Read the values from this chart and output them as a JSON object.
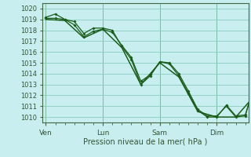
{
  "title": "Pression niveau de la mer( hPa )",
  "bg_color": "#c8eef0",
  "grid_color": "#88ccbb",
  "line_color": "#1a5c1a",
  "ylim": [
    1009.5,
    1020.5
  ],
  "yticks": [
    1010,
    1011,
    1012,
    1013,
    1014,
    1015,
    1016,
    1017,
    1018,
    1019,
    1020
  ],
  "xtick_labels": [
    "Ven",
    "Lun",
    "Sam",
    "Dim"
  ],
  "xtick_positions": [
    0,
    72,
    144,
    216
  ],
  "vline_positions": [
    0,
    72,
    144,
    216
  ],
  "xlim": [
    -4,
    256
  ],
  "series1": [
    [
      0,
      1019.2
    ],
    [
      12,
      1019.5
    ],
    [
      24,
      1019.0
    ],
    [
      36,
      1018.8
    ],
    [
      48,
      1017.7
    ],
    [
      60,
      1018.2
    ],
    [
      72,
      1018.2
    ],
    [
      84,
      1018.0
    ],
    [
      96,
      1016.5
    ],
    [
      108,
      1015.3
    ],
    [
      120,
      1013.0
    ],
    [
      132,
      1013.8
    ],
    [
      144,
      1015.1
    ],
    [
      156,
      1015.0
    ],
    [
      168,
      1014.0
    ],
    [
      180,
      1012.4
    ],
    [
      192,
      1010.7
    ],
    [
      204,
      1010.1
    ],
    [
      216,
      1010.1
    ],
    [
      228,
      1011.0
    ],
    [
      240,
      1010.0
    ],
    [
      252,
      1010.1
    ],
    [
      258,
      1011.7
    ]
  ],
  "series2": [
    [
      0,
      1019.1
    ],
    [
      12,
      1019.1
    ],
    [
      24,
      1019.0
    ],
    [
      36,
      1018.5
    ],
    [
      48,
      1017.4
    ],
    [
      60,
      1017.9
    ],
    [
      72,
      1018.1
    ],
    [
      84,
      1017.8
    ],
    [
      96,
      1016.6
    ],
    [
      108,
      1015.5
    ],
    [
      120,
      1013.3
    ],
    [
      132,
      1013.9
    ],
    [
      144,
      1015.1
    ],
    [
      156,
      1014.9
    ],
    [
      168,
      1013.8
    ],
    [
      180,
      1012.2
    ],
    [
      192,
      1010.6
    ],
    [
      204,
      1010.0
    ],
    [
      216,
      1010.0
    ],
    [
      228,
      1011.1
    ],
    [
      240,
      1010.1
    ],
    [
      252,
      1010.2
    ],
    [
      258,
      1011.6
    ]
  ],
  "series3": [
    [
      0,
      1019.0
    ],
    [
      24,
      1018.9
    ],
    [
      48,
      1017.3
    ],
    [
      72,
      1018.1
    ],
    [
      96,
      1016.4
    ],
    [
      120,
      1013.0
    ],
    [
      144,
      1015.0
    ],
    [
      168,
      1013.7
    ],
    [
      192,
      1010.5
    ],
    [
      216,
      1010.0
    ],
    [
      240,
      1010.0
    ],
    [
      258,
      1011.5
    ]
  ]
}
